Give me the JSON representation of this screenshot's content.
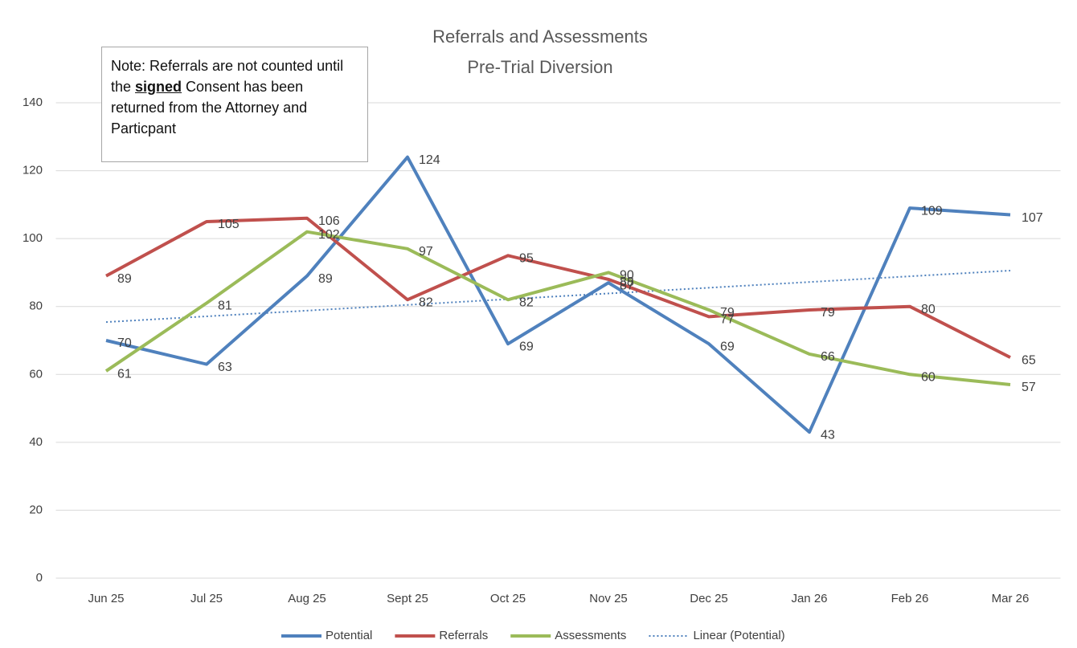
{
  "chart_data": {
    "type": "line",
    "title": "Referrals and Assessments",
    "subtitle": "Pre-Trial Diversion",
    "annotation": [
      "Note: Referrals are not counted until the ",
      "signed",
      " Consent has been returned from the Attorney and Particpant"
    ],
    "categories": [
      "Jun 25",
      "Jul 25",
      "Aug 25",
      "Sept 25",
      "Oct 25",
      "Nov 25",
      "Dec 25",
      "Jan 26",
      "Feb 26",
      "Mar 26"
    ],
    "series": [
      {
        "name": "Potential",
        "color": "#4f81bd",
        "values": [
          70,
          63,
          89,
          124,
          69,
          87,
          69,
          43,
          109,
          107
        ],
        "trendline": {
          "name": "Linear (Potential)",
          "type": "linear",
          "color": "#4f81bd"
        }
      },
      {
        "name": "Referrals",
        "color": "#c0504d",
        "values": [
          89,
          105,
          106,
          82,
          95,
          88,
          77,
          79,
          80,
          65
        ]
      },
      {
        "name": "Assessments",
        "color": "#9bbb59",
        "values": [
          61,
          81,
          102,
          97,
          82,
          90,
          79,
          66,
          60,
          57
        ]
      }
    ],
    "ylim": [
      0,
      140
    ],
    "yticks": [
      0,
      20,
      40,
      60,
      80,
      100,
      120,
      140
    ],
    "grid": true,
    "legend": "bottom"
  }
}
